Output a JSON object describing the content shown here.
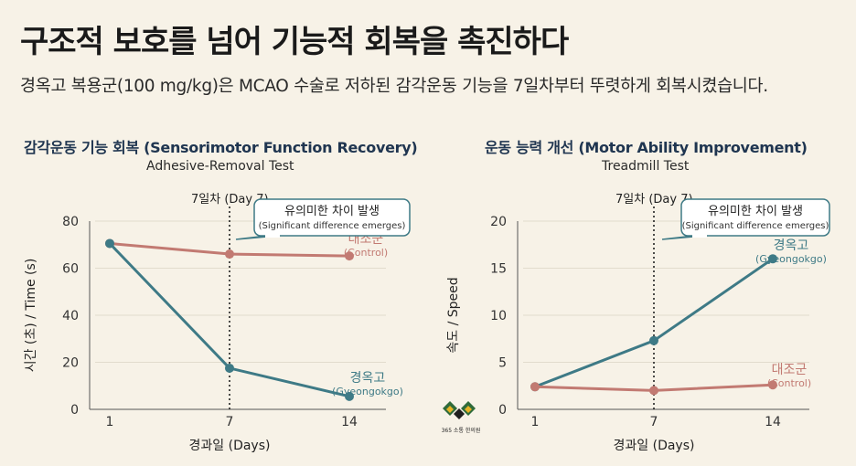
{
  "header": {
    "title": "구조적 보호를 넘어 기능적 회복을 촉진하다",
    "subtitle": "경옥고 복용군(100 mg/kg)은 MCAO 수술로 저하된 감각운동 기능을 7일차부터 뚜렷하게 회복시켰습니다."
  },
  "colors": {
    "gyeongokgo": "#3e7a86",
    "control": "#c27a72",
    "callout_border": "#3e7a86",
    "title_navy": "#1f3550"
  },
  "logo": {
    "text": "365 소통 한의원"
  },
  "chart_data": [
    {
      "type": "line",
      "title": "감각운동 기능 회복 (Sensorimotor Function Recovery)",
      "subtitle": "Adhesive-Removal Test",
      "xlabel": "경과일 (Days)",
      "ylabel": "시간 (초) / Time (s)",
      "categories": [
        "1",
        "7",
        "14"
      ],
      "ylim": [
        0,
        80
      ],
      "yticks": [
        0,
        20,
        40,
        60,
        80
      ],
      "grid": true,
      "marker_line": {
        "x": "7",
        "label": "7일차 (Day 7)"
      },
      "callout": {
        "text_ko": "유의미한 차이 발생",
        "text_en": "(Significant difference emerges)"
      },
      "series": [
        {
          "name": "대조군",
          "name_en": "(Control)",
          "color": "#c27a72",
          "values": [
            70.5,
            66,
            65.2
          ]
        },
        {
          "name": "경옥고",
          "name_en": "(Gyeongokgo)",
          "color": "#3e7a86",
          "values": [
            70.5,
            17.5,
            5.5
          ]
        }
      ]
    },
    {
      "type": "line",
      "title": "운동 능력 개선 (Motor Ability Improvement)",
      "subtitle": "Treadmill Test",
      "xlabel": "경과일 (Days)",
      "ylabel": "속도 / Speed",
      "categories": [
        "1",
        "7",
        "14"
      ],
      "ylim": [
        0,
        20
      ],
      "yticks": [
        0,
        5,
        10,
        15,
        20
      ],
      "grid": true,
      "marker_line": {
        "x": "7",
        "label": "7일차 (Day 7)"
      },
      "callout": {
        "text_ko": "유의미한 차이 발생",
        "text_en": "(Significant difference emerges)"
      },
      "series": [
        {
          "name": "경옥고",
          "name_en": "(Gyeongokgo)",
          "color": "#3e7a86",
          "values": [
            2.4,
            7.3,
            16
          ]
        },
        {
          "name": "대조군",
          "name_en": "(Control)",
          "color": "#c27a72",
          "values": [
            2.4,
            2.0,
            2.6
          ]
        }
      ]
    }
  ]
}
